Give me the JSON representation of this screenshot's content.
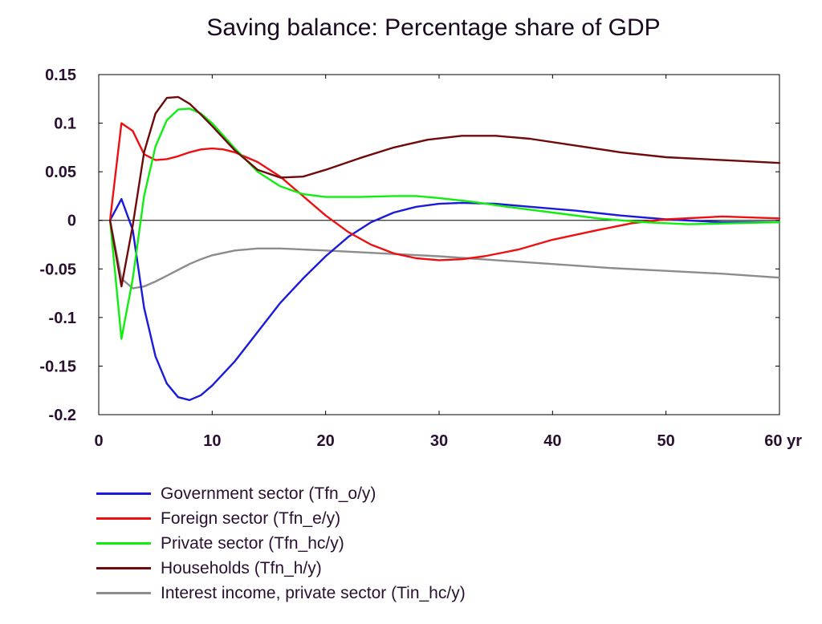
{
  "chart_data": {
    "type": "line",
    "title": "Saving balance: Percentage share of GDP",
    "xlabel": "",
    "ylabel": "",
    "xlim": [
      0,
      60
    ],
    "ylim": [
      -0.2,
      0.15
    ],
    "x_tick_labels": [
      "0",
      "10",
      "20",
      "30",
      "40",
      "50",
      "60 yr"
    ],
    "x_ticks": [
      0,
      10,
      20,
      30,
      40,
      50,
      60
    ],
    "y_tick_labels": [
      "0.15",
      "0.1",
      "0.05",
      "0",
      "-0.05",
      "-0.1",
      "-0.15",
      "-0.2"
    ],
    "y_ticks": [
      0.15,
      0.1,
      0.05,
      0,
      -0.05,
      -0.1,
      -0.15,
      -0.2
    ],
    "zero_line": true,
    "grid": false,
    "legend_position": "bottom-left",
    "series": [
      {
        "name": "Government sector (Tfn_o/y)",
        "color": "#1a1adc",
        "points": [
          [
            1,
            0
          ],
          [
            2,
            0.022
          ],
          [
            3,
            -0.01
          ],
          [
            4,
            -0.09
          ],
          [
            5,
            -0.14
          ],
          [
            6,
            -0.168
          ],
          [
            7,
            -0.182
          ],
          [
            8,
            -0.185
          ],
          [
            9,
            -0.18
          ],
          [
            10,
            -0.17
          ],
          [
            12,
            -0.145
          ],
          [
            14,
            -0.115
          ],
          [
            16,
            -0.085
          ],
          [
            18,
            -0.06
          ],
          [
            20,
            -0.037
          ],
          [
            22,
            -0.017
          ],
          [
            24,
            -0.002
          ],
          [
            26,
            0.008
          ],
          [
            28,
            0.014
          ],
          [
            30,
            0.017
          ],
          [
            32,
            0.018
          ],
          [
            35,
            0.017
          ],
          [
            38,
            0.014
          ],
          [
            42,
            0.01
          ],
          [
            46,
            0.005
          ],
          [
            50,
            0.001
          ],
          [
            55,
            -0.002
          ],
          [
            60,
            -0.002
          ]
        ]
      },
      {
        "name": "Foreign sector (Tfn_e/y)",
        "color": "#ee1010",
        "points": [
          [
            1,
            0
          ],
          [
            2,
            0.1
          ],
          [
            3,
            0.092
          ],
          [
            4,
            0.068
          ],
          [
            5,
            0.062
          ],
          [
            6,
            0.063
          ],
          [
            7,
            0.066
          ],
          [
            8,
            0.07
          ],
          [
            9,
            0.073
          ],
          [
            10,
            0.074
          ],
          [
            11,
            0.073
          ],
          [
            12,
            0.07
          ],
          [
            14,
            0.06
          ],
          [
            16,
            0.045
          ],
          [
            18,
            0.025
          ],
          [
            20,
            0.005
          ],
          [
            22,
            -0.012
          ],
          [
            24,
            -0.025
          ],
          [
            26,
            -0.034
          ],
          [
            28,
            -0.039
          ],
          [
            30,
            -0.041
          ],
          [
            32,
            -0.04
          ],
          [
            34,
            -0.037
          ],
          [
            37,
            -0.03
          ],
          [
            40,
            -0.02
          ],
          [
            44,
            -0.01
          ],
          [
            47,
            -0.003
          ],
          [
            50,
            0.001
          ],
          [
            55,
            0.004
          ],
          [
            60,
            0.002
          ]
        ]
      },
      {
        "name": "Private sector (Tfn_hc/y)",
        "color": "#10ee10",
        "points": [
          [
            1,
            0
          ],
          [
            2,
            -0.122
          ],
          [
            3,
            -0.06
          ],
          [
            4,
            0.025
          ],
          [
            5,
            0.076
          ],
          [
            6,
            0.103
          ],
          [
            7,
            0.114
          ],
          [
            8,
            0.115
          ],
          [
            9,
            0.11
          ],
          [
            10,
            0.1
          ],
          [
            12,
            0.074
          ],
          [
            14,
            0.05
          ],
          [
            16,
            0.035
          ],
          [
            18,
            0.027
          ],
          [
            20,
            0.024
          ],
          [
            23,
            0.024
          ],
          [
            26,
            0.025
          ],
          [
            28,
            0.025
          ],
          [
            30,
            0.023
          ],
          [
            33,
            0.019
          ],
          [
            36,
            0.014
          ],
          [
            40,
            0.008
          ],
          [
            44,
            0.002
          ],
          [
            48,
            -0.002
          ],
          [
            52,
            -0.004
          ],
          [
            56,
            -0.003
          ],
          [
            60,
            -0.002
          ]
        ]
      },
      {
        "name": "Households (Tfn_h/y)",
        "color": "#6e0a0a",
        "points": [
          [
            1,
            0
          ],
          [
            2,
            -0.068
          ],
          [
            3,
            -0.005
          ],
          [
            4,
            0.07
          ],
          [
            5,
            0.11
          ],
          [
            6,
            0.126
          ],
          [
            7,
            0.127
          ],
          [
            8,
            0.12
          ],
          [
            9,
            0.109
          ],
          [
            10,
            0.097
          ],
          [
            12,
            0.072
          ],
          [
            14,
            0.052
          ],
          [
            16,
            0.044
          ],
          [
            18,
            0.045
          ],
          [
            20,
            0.052
          ],
          [
            23,
            0.064
          ],
          [
            26,
            0.075
          ],
          [
            29,
            0.083
          ],
          [
            32,
            0.087
          ],
          [
            35,
            0.087
          ],
          [
            38,
            0.084
          ],
          [
            42,
            0.077
          ],
          [
            46,
            0.07
          ],
          [
            50,
            0.065
          ],
          [
            55,
            0.062
          ],
          [
            60,
            0.059
          ]
        ]
      },
      {
        "name": "Interest income, private sector (Tin_hc/y)",
        "color": "#8c8c8c",
        "points": [
          [
            1,
            0
          ],
          [
            2,
            -0.06
          ],
          [
            3,
            -0.07
          ],
          [
            4,
            -0.068
          ],
          [
            5,
            -0.063
          ],
          [
            6,
            -0.057
          ],
          [
            7,
            -0.051
          ],
          [
            8,
            -0.045
          ],
          [
            9,
            -0.04
          ],
          [
            10,
            -0.036
          ],
          [
            12,
            -0.031
          ],
          [
            14,
            -0.029
          ],
          [
            16,
            -0.029
          ],
          [
            18,
            -0.03
          ],
          [
            20,
            -0.031
          ],
          [
            25,
            -0.034
          ],
          [
            30,
            -0.037
          ],
          [
            35,
            -0.041
          ],
          [
            40,
            -0.045
          ],
          [
            45,
            -0.049
          ],
          [
            50,
            -0.052
          ],
          [
            55,
            -0.055
          ],
          [
            60,
            -0.059
          ]
        ]
      }
    ]
  }
}
